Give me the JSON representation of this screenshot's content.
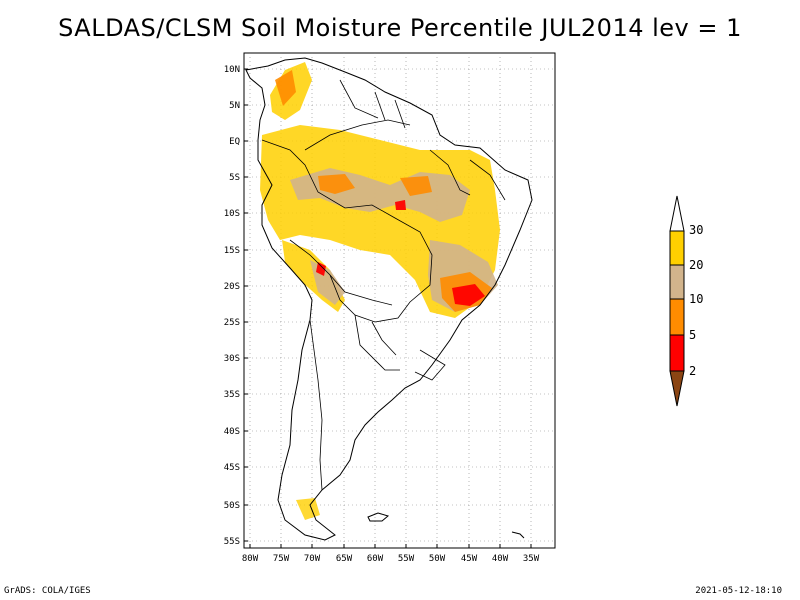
{
  "title": "SALDAS/CLSM Soil Moisture Percentile JUL2014 lev = 1",
  "map": {
    "lat_labels": [
      "10N",
      "5N",
      "EQ",
      "5S",
      "10S",
      "15S",
      "20S",
      "25S",
      "30S",
      "35S",
      "40S",
      "45S",
      "50S",
      "55S"
    ],
    "lon_labels": [
      "80W",
      "75W",
      "70W",
      "65W",
      "60W",
      "55W",
      "50W",
      "45W",
      "40W",
      "35W"
    ],
    "lon_range": [
      -81,
      -32
    ],
    "lat_range": [
      -56,
      12
    ]
  },
  "legend": {
    "labels": [
      "30",
      "20",
      "10",
      "5",
      "2"
    ],
    "colors": {
      "above30": "#ffffff",
      "c20_30": "#ffd000",
      "c10_20": "#d2b48c",
      "c5_10": "#ff8c00",
      "c2_5": "#ff0000",
      "below2": "#8b4513"
    }
  },
  "footer": {
    "credit": "GrADS: COLA/IGES",
    "timestamp": "2021-05-12-18:10"
  }
}
